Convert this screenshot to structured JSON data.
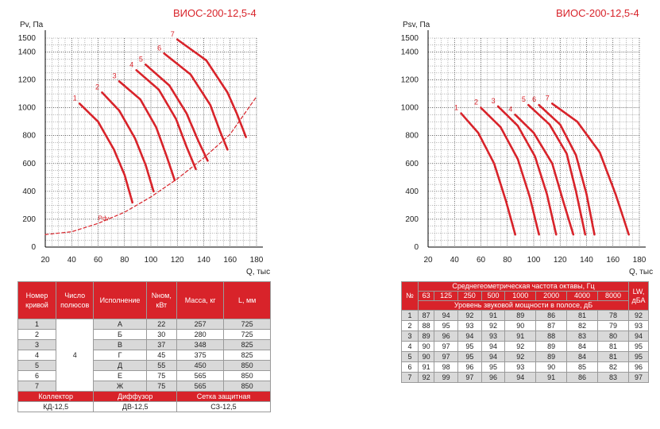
{
  "left_chart": {
    "model": "ВИОС-200-12,5-4",
    "ylabel": "Pv, Па",
    "xlabel": "Q, тыс.м³/ч",
    "curve_label_pdv": "Pdv"
  },
  "right_chart": {
    "model": "ВИОС-200-12,5-4",
    "ylabel": "Psv, Па",
    "xlabel": "Q, тыс.м³/ч"
  },
  "chart_data": [
    {
      "type": "line",
      "title": "ВИОС-200-12,5-4",
      "xlabel": "Q, тыс.м³/ч",
      "ylabel": "Pv, Па",
      "xlim": [
        20,
        180
      ],
      "ylim": [
        0,
        1500
      ],
      "xticks": [
        20,
        40,
        60,
        80,
        100,
        120,
        140,
        160,
        180
      ],
      "yticks": [
        0,
        200,
        400,
        600,
        800,
        1000,
        1200,
        1400,
        1500
      ],
      "grid": true,
      "series": [
        {
          "name": "1",
          "x": [
            46,
            60,
            72,
            80,
            86
          ],
          "y": [
            1030,
            900,
            700,
            520,
            320
          ]
        },
        {
          "name": "2",
          "x": [
            63,
            76,
            88,
            96,
            102
          ],
          "y": [
            1110,
            980,
            780,
            590,
            400
          ]
        },
        {
          "name": "3",
          "x": [
            76,
            92,
            104,
            112,
            118
          ],
          "y": [
            1190,
            1060,
            860,
            650,
            480
          ]
        },
        {
          "name": "4",
          "x": [
            89,
            106,
            119,
            127,
            134
          ],
          "y": [
            1270,
            1130,
            920,
            720,
            560
          ]
        },
        {
          "name": "5",
          "x": [
            96,
            114,
            127,
            136,
            143
          ],
          "y": [
            1310,
            1160,
            960,
            760,
            620
          ]
        },
        {
          "name": "6",
          "x": [
            110,
            130,
            145,
            152,
            158
          ],
          "y": [
            1390,
            1240,
            1020,
            840,
            700
          ]
        },
        {
          "name": "7",
          "x": [
            120,
            142,
            158,
            165,
            172
          ],
          "y": [
            1490,
            1340,
            1110,
            960,
            790
          ]
        },
        {
          "name": "Pdv",
          "dashed": true,
          "x": [
            20,
            40,
            60,
            80,
            100,
            120,
            140,
            160,
            180
          ],
          "y": [
            90,
            110,
            170,
            250,
            360,
            490,
            640,
            810,
            1080
          ]
        }
      ]
    },
    {
      "type": "line",
      "title": "ВИОС-200-12,5-4",
      "xlabel": "Q, тыс.м³/ч",
      "ylabel": "Psv, Па",
      "xlim": [
        20,
        180
      ],
      "ylim": [
        0,
        1500
      ],
      "xticks": [
        20,
        40,
        60,
        80,
        100,
        120,
        140,
        160,
        180
      ],
      "yticks": [
        0,
        200,
        400,
        600,
        800,
        1000,
        1200,
        1400,
        1500
      ],
      "grid": true,
      "series": [
        {
          "name": "1",
          "x": [
            45,
            58,
            70,
            79,
            86
          ],
          "y": [
            960,
            820,
            600,
            330,
            90
          ]
        },
        {
          "name": "2",
          "x": [
            60,
            75,
            88,
            97,
            104
          ],
          "y": [
            1000,
            860,
            630,
            360,
            90
          ]
        },
        {
          "name": "3",
          "x": [
            73,
            88,
            101,
            110,
            117
          ],
          "y": [
            1010,
            870,
            650,
            380,
            90
          ]
        },
        {
          "name": "4",
          "x": [
            86,
            100,
            114,
            122,
            130
          ],
          "y": [
            950,
            820,
            600,
            340,
            90
          ]
        },
        {
          "name": "5",
          "x": [
            96,
            112,
            125,
            132,
            139
          ],
          "y": [
            1020,
            880,
            670,
            400,
            90
          ]
        },
        {
          "name": "6",
          "x": [
            104,
            120,
            132,
            140,
            146
          ],
          "y": [
            1020,
            880,
            660,
            380,
            90
          ]
        },
        {
          "name": "7",
          "x": [
            114,
            133,
            150,
            162,
            172
          ],
          "y": [
            1030,
            900,
            680,
            380,
            90
          ]
        }
      ]
    }
  ],
  "table_left": {
    "headers": [
      "Номер кривой",
      "Число полюсов",
      "Исполнение",
      "Nном, кВт",
      "Масса, кг",
      "L, мм"
    ],
    "poles": "4",
    "rows": [
      [
        "1",
        "А",
        "22",
        "257",
        "725"
      ],
      [
        "2",
        "Б",
        "30",
        "280",
        "725"
      ],
      [
        "3",
        "В",
        "37",
        "348",
        "825"
      ],
      [
        "4",
        "Г",
        "45",
        "375",
        "825"
      ],
      [
        "5",
        "Д",
        "55",
        "450",
        "850"
      ],
      [
        "6",
        "Е",
        "75",
        "565",
        "850"
      ],
      [
        "7",
        "Ж",
        "75",
        "565",
        "850"
      ]
    ],
    "acc_headers": [
      "Коллектор",
      "Диффузор",
      "Сетка защитная"
    ],
    "acc_values": [
      "КД-12,5",
      "ДВ-12,5",
      "СЗ-12,5"
    ]
  },
  "table_right": {
    "num_header": "№",
    "freq_header": "Среднегеометрическая частота октавы, Гц",
    "freqs": [
      "63",
      "125",
      "250",
      "500",
      "1000",
      "2000",
      "4000",
      "8000"
    ],
    "level_header": "Уровень звуковой мощности в полосе, дБ",
    "lw_header": "LW, дБА",
    "rows": [
      [
        "1",
        "87",
        "94",
        "92",
        "91",
        "89",
        "86",
        "81",
        "78",
        "92"
      ],
      [
        "2",
        "88",
        "95",
        "93",
        "92",
        "90",
        "87",
        "82",
        "79",
        "93"
      ],
      [
        "3",
        "89",
        "96",
        "94",
        "93",
        "91",
        "88",
        "83",
        "80",
        "94"
      ],
      [
        "4",
        "90",
        "97",
        "95",
        "94",
        "92",
        "89",
        "84",
        "81",
        "95"
      ],
      [
        "5",
        "90",
        "97",
        "95",
        "94",
        "92",
        "89",
        "84",
        "81",
        "95"
      ],
      [
        "6",
        "91",
        "98",
        "96",
        "95",
        "93",
        "90",
        "85",
        "82",
        "96"
      ],
      [
        "7",
        "92",
        "99",
        "97",
        "96",
        "94",
        "91",
        "86",
        "83",
        "97"
      ]
    ]
  },
  "colors": {
    "accent": "#d8232a",
    "grid": "#000000",
    "stripe": "#d9d9d9"
  }
}
